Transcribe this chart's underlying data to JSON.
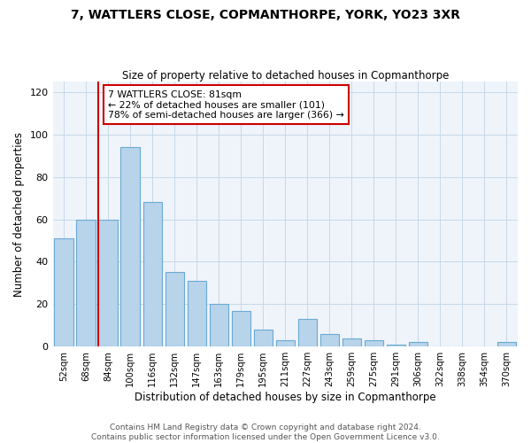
{
  "title": "7, WATTLERS CLOSE, COPMANTHORPE, YORK, YO23 3XR",
  "subtitle": "Size of property relative to detached houses in Copmanthorpe",
  "xlabel": "Distribution of detached houses by size in Copmanthorpe",
  "ylabel": "Number of detached properties",
  "bin_labels": [
    "52sqm",
    "68sqm",
    "84sqm",
    "100sqm",
    "116sqm",
    "132sqm",
    "147sqm",
    "163sqm",
    "179sqm",
    "195sqm",
    "211sqm",
    "227sqm",
    "243sqm",
    "259sqm",
    "275sqm",
    "291sqm",
    "306sqm",
    "322sqm",
    "338sqm",
    "354sqm",
    "370sqm"
  ],
  "bar_heights": [
    51,
    60,
    60,
    94,
    68,
    35,
    31,
    20,
    17,
    8,
    3,
    13,
    6,
    4,
    3,
    1,
    2,
    0,
    0,
    0,
    2
  ],
  "bar_color": "#b8d4eb",
  "bar_edge_color": "#6aaad4",
  "vline_index": 2,
  "vline_color": "#cc0000",
  "ylim": [
    0,
    125
  ],
  "yticks": [
    0,
    20,
    40,
    60,
    80,
    100,
    120
  ],
  "annotation_text": "7 WATTLERS CLOSE: 81sqm\n← 22% of detached houses are smaller (101)\n78% of semi-detached houses are larger (366) →",
  "annotation_box_color": "#ffffff",
  "annotation_box_edge_color": "#cc0000",
  "footer_line1": "Contains HM Land Registry data © Crown copyright and database right 2024.",
  "footer_line2": "Contains public sector information licensed under the Open Government Licence v3.0.",
  "n_bars": 21
}
